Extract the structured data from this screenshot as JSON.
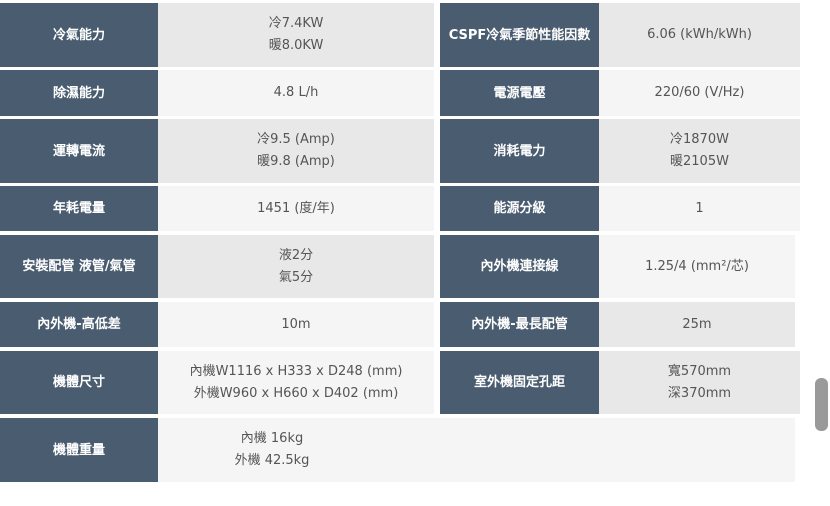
{
  "specs": [
    {
      "l1": "冷氣能力",
      "v1": [
        "冷7.4KW",
        "暖8.0KW"
      ],
      "l2": "CSPF冷氣季節性能因數",
      "v2": [
        "6.06 (kWh/kWh)"
      ]
    },
    {
      "l1": "除濕能力",
      "v1": [
        "4.8 L/h"
      ],
      "l2": "電源電壓",
      "v2": [
        "220/60 (V/Hz)"
      ]
    },
    {
      "l1": "運轉電流",
      "v1": [
        "冷9.5 (Amp)",
        "暖9.8 (Amp)"
      ],
      "l2": "消耗電力",
      "v2": [
        "冷1870W",
        "暖2105W"
      ]
    },
    {
      "l1": "年耗電量",
      "v1": [
        "1451 (度/年)"
      ],
      "l2": "能源分級",
      "v2": [
        "1"
      ]
    },
    {
      "l1": "安裝配管 液管/氣管",
      "v1": [
        "液2分",
        "氣5分"
      ],
      "l2": "內外機連接線",
      "v2": [
        "1.25/4 (mm²/芯)"
      ]
    },
    {
      "l1": "內外機-高低差",
      "v1": [
        "10m"
      ],
      "l2": "內外機-最長配管",
      "v2": [
        "25m"
      ]
    },
    {
      "l1": "機體尺寸",
      "v1": [
        "內機W1116 x H333 x D248 (mm)",
        "外機W960 x H660 x D402 (mm)"
      ],
      "l2": "室外機固定孔距",
      "v2": [
        "寬570mm",
        "深370mm"
      ]
    },
    {
      "l1": "機體重量",
      "v1": [
        "內機 16kg",
        "外機 42.5kg"
      ]
    }
  ],
  "colors": {
    "label_bg": "#4a5d70",
    "cell_dark": "#e8e8e8",
    "cell_light": "#f5f5f5"
  }
}
